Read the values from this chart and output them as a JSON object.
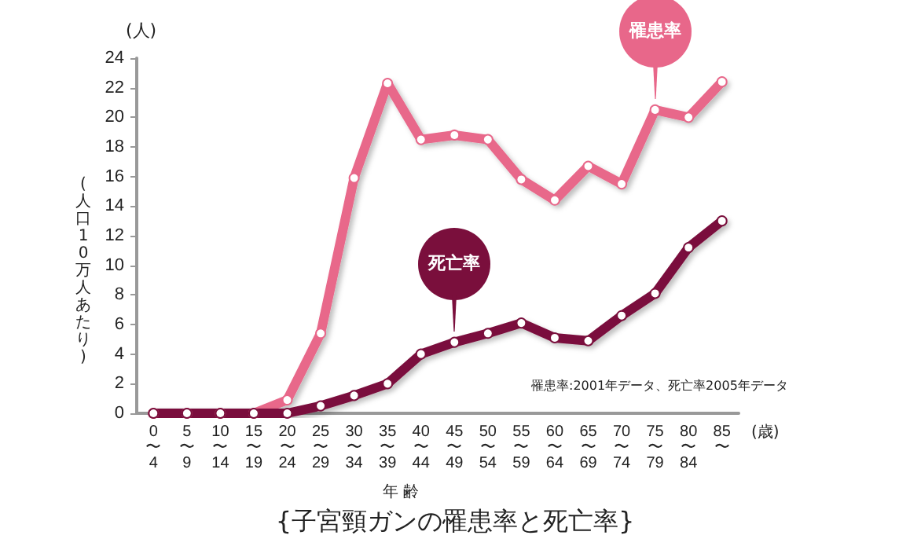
{
  "chart_data": {
    "type": "line",
    "title": "{子宮頸ガンの罹患率と死亡率}",
    "xlabel": "年 齢",
    "ylabel": "(人口10万人あたり)",
    "annotations": [
      "(人)",
      "(歳)",
      "罹患率:2001年データ、死亡率2005年データ"
    ],
    "categories": [
      "0\n〜\n4",
      "5\n〜\n9",
      "10\n〜\n14",
      "15\n〜\n19",
      "20\n〜\n24",
      "25\n〜\n29",
      "30\n〜\n34",
      "35\n〜\n39",
      "40\n〜\n44",
      "45\n〜\n49",
      "50\n〜\n54",
      "55\n〜\n59",
      "60\n〜\n64",
      "65\n〜\n69",
      "70\n〜\n74",
      "75\n〜\n79",
      "80\n〜\n84",
      "85\n〜"
    ],
    "series": [
      {
        "name": "罹患率",
        "color": "#e8678a",
        "values": [
          0,
          0,
          0,
          0,
          0.9,
          5.4,
          15.9,
          22.3,
          18.5,
          18.8,
          18.5,
          15.8,
          14.4,
          16.7,
          15.5,
          20.5,
          20.0,
          22.4
        ]
      },
      {
        "name": "死亡率",
        "color": "#7a0f3c",
        "values": [
          0,
          0,
          0,
          0,
          0,
          0.5,
          1.2,
          2.0,
          4.0,
          4.8,
          5.4,
          6.1,
          5.1,
          4.9,
          6.6,
          8.1,
          11.2,
          13.0
        ]
      }
    ],
    "ylim": [
      0,
      24
    ],
    "yticks": [
      0,
      2,
      4,
      6,
      8,
      10,
      12,
      14,
      16,
      18,
      20,
      22,
      24
    ],
    "grid": false,
    "legend": false,
    "marker": "circle",
    "line_style": "solid"
  }
}
